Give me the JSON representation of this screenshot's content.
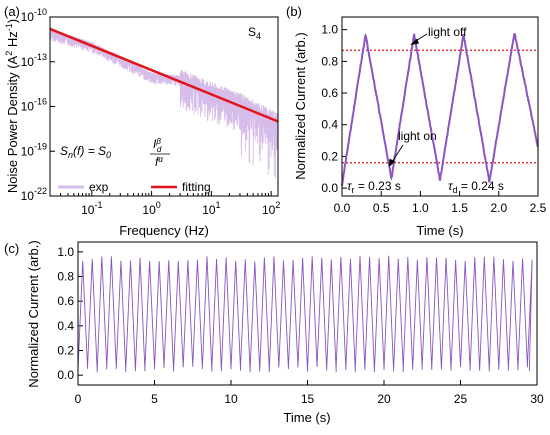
{
  "colors": {
    "trace": "#8a55c0",
    "noise_fill": "#d6bce8",
    "fitting": "#e0141a",
    "threshold": "#e0141a",
    "axis": "#000000"
  },
  "chart_data": [
    {
      "id": "a",
      "type": "line",
      "panel_label": "(a)",
      "annotation": "S",
      "annotation_sub": "4",
      "xlabel": "Frequency (Hz)",
      "ylabel_parts": [
        "Noise Power Density (A",
        "2",
        " Hz",
        "-1",
        ")"
      ],
      "xscale": "log",
      "yscale": "log",
      "xlim": [
        0.02,
        130
      ],
      "ylim": [
        1e-22,
        1e-10
      ],
      "x_ticks": [
        {
          "value": 0.1,
          "base": "10",
          "exp": "-1"
        },
        {
          "value": 1,
          "base": "10",
          "exp": "0"
        },
        {
          "value": 10,
          "base": "10",
          "exp": "1"
        },
        {
          "value": 100,
          "base": "10",
          "exp": "2"
        }
      ],
      "y_ticks": [
        {
          "value": 1e-10,
          "base": "10",
          "exp": "-10"
        },
        {
          "value": 1e-13,
          "base": "10",
          "exp": "-13"
        },
        {
          "value": 1e-16,
          "base": "10",
          "exp": "-16"
        },
        {
          "value": 1e-19,
          "base": "10",
          "exp": "-19"
        },
        {
          "value": 1e-22,
          "base": "10",
          "exp": "-22"
        }
      ],
      "formula": {
        "lhs": "S",
        "lhs_sub": "n",
        "arg": "(f) = S",
        "s_sub": "0",
        "num": "I",
        "num_sup": "β",
        "num_sub": "d",
        "den": "f",
        "den_sup": "α"
      },
      "series": [
        {
          "name": "exp",
          "color": "#d6bce8",
          "x": [
            0.02,
            0.1,
            1,
            3,
            10,
            30,
            100,
            130
          ],
          "y": [
            1e-11,
            1.5e-12,
            1.3e-14,
            8e-15,
            1e-15,
            2e-16,
            1.5e-17,
            8e-18
          ]
        },
        {
          "name": "fitting",
          "color": "#e0141a",
          "x": [
            0.02,
            130
          ],
          "y": [
            1.6e-11,
            1e-17
          ]
        }
      ],
      "legend_location": "lower-left"
    },
    {
      "id": "b",
      "type": "line",
      "panel_label": "(b)",
      "xlabel": "Time (s)",
      "ylabel": "Normalized Current (arb.)",
      "xlim": [
        0,
        2.5
      ],
      "ylim": [
        -0.05,
        1.08
      ],
      "x_ticks": [
        "0.0",
        "0.5",
        "1.0",
        "1.5",
        "2.0",
        "2.5"
      ],
      "y_ticks": [
        "0.0",
        "0.2",
        "0.4",
        "0.6",
        "0.8",
        "1.0"
      ],
      "annotations": [
        {
          "text": "light off",
          "x": 0.88,
          "y": 0.97
        },
        {
          "text": "light on",
          "x": 0.6,
          "y": 0.06
        }
      ],
      "time_constants": [
        {
          "symbol": "τ",
          "sub": "r",
          "value": " = 0.23 s"
        },
        {
          "symbol": "τ",
          "sub": "d",
          "value": " = 0.24 s"
        }
      ],
      "threshold_lines": [
        0.87,
        0.16
      ],
      "series": [
        {
          "x": [
            0.0,
            0.3,
            0.63,
            0.92,
            1.25,
            1.55,
            1.88,
            2.2,
            2.5
          ],
          "y": [
            0.02,
            0.97,
            0.06,
            0.97,
            0.05,
            0.97,
            0.04,
            0.98,
            0.26
          ]
        }
      ]
    },
    {
      "id": "c",
      "type": "line",
      "panel_label": "(c)",
      "xlabel": "Time (s)",
      "ylabel": "Normalized Current (arb.)",
      "xlim": [
        0,
        30
      ],
      "ylim": [
        -0.08,
        1.08
      ],
      "x_ticks": [
        "0",
        "5",
        "10",
        "15",
        "20",
        "25",
        "30"
      ],
      "y_ticks": [
        "0.0",
        "0.2",
        "0.4",
        "0.6",
        "0.8",
        "1.0"
      ],
      "series": [
        {
          "period": 0.625,
          "rise_fraction": 0.49,
          "min": 0.02,
          "max": 0.97,
          "x_start": 0.0,
          "x_end": 29.5
        }
      ]
    }
  ]
}
